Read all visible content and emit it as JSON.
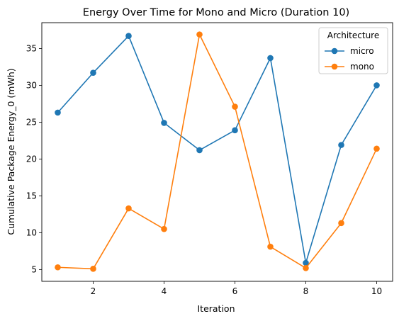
{
  "chart_data": {
    "type": "line",
    "title": "Energy Over Time for Mono and Micro (Duration 10)",
    "xlabel": "Iteration",
    "ylabel": "Cumulative Package Energy_0 (mWh)",
    "x": [
      1,
      2,
      3,
      4,
      5,
      6,
      7,
      8,
      9,
      10
    ],
    "xlim": [
      0.55,
      10.45
    ],
    "ylim": [
      3.4,
      38.5
    ],
    "xticks": [
      2,
      4,
      6,
      8,
      10
    ],
    "yticks": [
      5,
      10,
      15,
      20,
      25,
      30,
      35
    ],
    "grid": false,
    "legend": {
      "title": "Architecture",
      "position": "top-right"
    },
    "series": [
      {
        "name": "micro",
        "color": "#1f77b4",
        "marker": "circle",
        "values": [
          26.3,
          31.7,
          36.7,
          24.9,
          21.2,
          23.9,
          33.7,
          5.9,
          21.9,
          30.0
        ]
      },
      {
        "name": "mono",
        "color": "#ff7f0e",
        "marker": "circle",
        "values": [
          5.3,
          5.1,
          13.3,
          10.5,
          36.9,
          27.1,
          8.1,
          5.2,
          11.3,
          21.4
        ]
      }
    ]
  }
}
